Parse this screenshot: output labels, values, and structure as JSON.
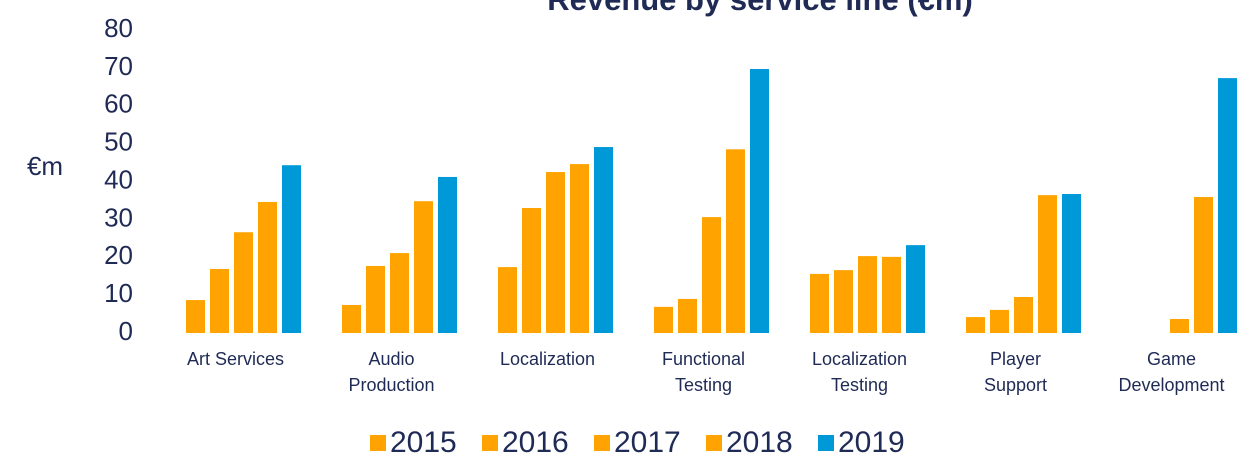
{
  "chart_data": {
    "type": "bar",
    "title": "Revenue by service line (€m)",
    "y_label": "€m",
    "categories": [
      "Art Services",
      "Audio\nProduction",
      "Localization",
      "Functional\nTesting",
      "Localization\nTesting",
      "Player\nSupport",
      "Game\nDevelopment"
    ],
    "series": [
      {
        "name": "2015",
        "color": "#ffa300",
        "values": [
          8.7,
          7.4,
          17.4,
          6.9,
          15.6,
          4.2,
          null
        ]
      },
      {
        "name": "2016",
        "color": "#ffa300",
        "values": [
          16.9,
          17.7,
          33,
          9,
          16.6,
          6.1,
          null
        ]
      },
      {
        "name": "2017",
        "color": "#ffa300",
        "values": [
          26.6,
          21.1,
          42.5,
          30.6,
          20.3,
          9.5,
          3.7
        ]
      },
      {
        "name": "2018",
        "color": "#ffa300",
        "values": [
          34.6,
          34.8,
          44.6,
          48.5,
          20.1,
          36.4,
          35.9
        ]
      },
      {
        "name": "2019",
        "color": "#0099d8",
        "values": [
          44.3,
          41.2,
          49.1,
          69.7,
          23.2,
          36.7,
          67.3
        ]
      }
    ],
    "ylim": [
      0,
      80
    ],
    "yticks": [
      0,
      10,
      20,
      30,
      40,
      50,
      60,
      70,
      80
    ],
    "grid": false,
    "legend": "bottom"
  }
}
